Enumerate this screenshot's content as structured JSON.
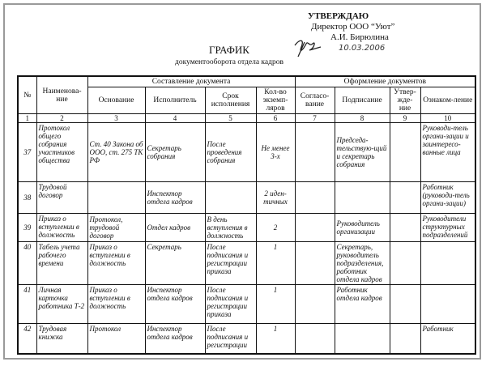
{
  "approval": {
    "heading": "УТВЕРЖДАЮ",
    "position": "Директор ООО “Уют”",
    "name": "А.И. Бирюлина",
    "date": "10.03.2006"
  },
  "title": "ГРАФИК",
  "subtitle": "документооборота отдела кадров",
  "table": {
    "group_headers": [
      "Составление документа",
      "Оформление документов"
    ],
    "headers": [
      "№",
      "Наименова-ние",
      "Основание",
      "Исполнитель",
      "Срок исполнения",
      "Кол-во экземп-ляров",
      "Согласо-вание",
      "Подписание",
      "Утвер-жде-ние",
      "Ознаком-ление"
    ],
    "column_numbers": [
      "1",
      "2",
      "3",
      "4",
      "5",
      "6",
      "7",
      "8",
      "9",
      "10"
    ],
    "rows": [
      [
        "37",
        "Протокол общего собрания участников общества",
        "Ст. 40 Закона об ООО, ст. 275 ТК РФ",
        "Секретарь собрания",
        "После проведения собрания",
        "Не менее 3-х",
        "",
        "Председа-тельствую-щий и секретарь собрания",
        "",
        "Руководи-тель органи-зации и заинтересо-ванные лица"
      ],
      [
        "38",
        "Трудовой договор",
        "",
        "Инспектор отдела кадров",
        "",
        "2 иден-тичных",
        "",
        "",
        "",
        "Работник (руководи-тель органи-зации)"
      ],
      [
        "39",
        "Приказ о вступлении в должность",
        "Протокол, трудовой договор",
        "Отдел кадров",
        "В день вступления в должность",
        "2",
        "",
        "Руководитель организации",
        "",
        "Руководители структурных подразделений"
      ],
      [
        "40",
        "Табель учета рабочего времени",
        "Приказ о вступлении в должность",
        "Секретарь",
        "После подписания и регистрации приказа",
        "1",
        "",
        "Секретарь, руководитель подразделения, работник отдела кадров",
        "",
        ""
      ],
      [
        "41",
        "Личная карточка работника Т-2",
        "Приказ о вступлении в должность",
        "Инспектор отдела кадров",
        "После подписания и регистрации приказа",
        "1",
        "",
        "Работник отдела кадров",
        "",
        ""
      ],
      [
        "42",
        "Трудовая книжка",
        "Протокол",
        "Инспектор отдела кадров",
        "После подписания и регистрации",
        "1",
        "",
        "",
        "",
        "Работник"
      ]
    ]
  }
}
